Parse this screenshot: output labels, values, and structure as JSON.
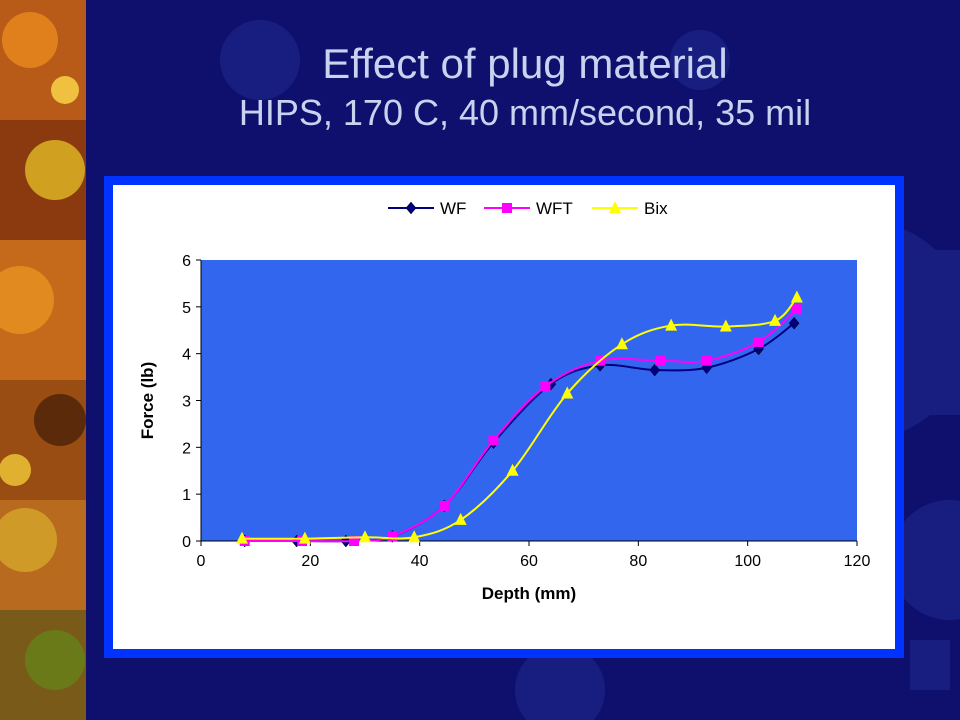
{
  "slide": {
    "title_line1": "Effect of plug material",
    "title_line2": "HIPS, 170 C, 40 mm/second, 35 mil"
  },
  "colors": {
    "slide_background": "#0f0f6e",
    "title_text": "#c9d2ee",
    "chart_frame": "#0033ff",
    "chart_area": "#ffffff",
    "plot_area": "#3366ee"
  },
  "chart_data": {
    "type": "line",
    "title": "",
    "xlabel": "Depth (mm)",
    "ylabel": "Force (lb)",
    "xlim": [
      0,
      120
    ],
    "ylim": [
      0,
      6
    ],
    "xticks": [
      0,
      20,
      40,
      60,
      80,
      100,
      120
    ],
    "yticks": [
      0,
      1,
      2,
      3,
      4,
      5,
      6
    ],
    "grid": false,
    "legend_position": "top",
    "smooth": true,
    "series": [
      {
        "name": "WF",
        "color": "#000080",
        "marker": "diamond",
        "x": [
          8,
          17.5,
          26.5,
          35,
          44.5,
          53.5,
          64,
          73,
          83,
          92.5,
          102,
          108.5
        ],
        "y": [
          0,
          0,
          0,
          0.1,
          0.75,
          2.1,
          3.35,
          3.75,
          3.65,
          3.7,
          4.1,
          4.65
        ]
      },
      {
        "name": "WFT",
        "color": "#ff00ff",
        "marker": "square",
        "x": [
          8,
          18.5,
          28,
          35,
          44.5,
          53.5,
          63,
          73,
          84,
          92.5,
          102,
          109
        ],
        "y": [
          0,
          0,
          0,
          0.1,
          0.75,
          2.15,
          3.3,
          3.85,
          3.85,
          3.85,
          4.25,
          4.95
        ]
      },
      {
        "name": "Bix",
        "color": "#ffff00",
        "marker": "triangle",
        "x": [
          7.5,
          19,
          30,
          39,
          47.5,
          57,
          67,
          77,
          86,
          96,
          105,
          109
        ],
        "y": [
          0.05,
          0.05,
          0.08,
          0.08,
          0.45,
          1.5,
          3.15,
          4.2,
          4.6,
          4.58,
          4.7,
          5.2
        ]
      }
    ]
  }
}
